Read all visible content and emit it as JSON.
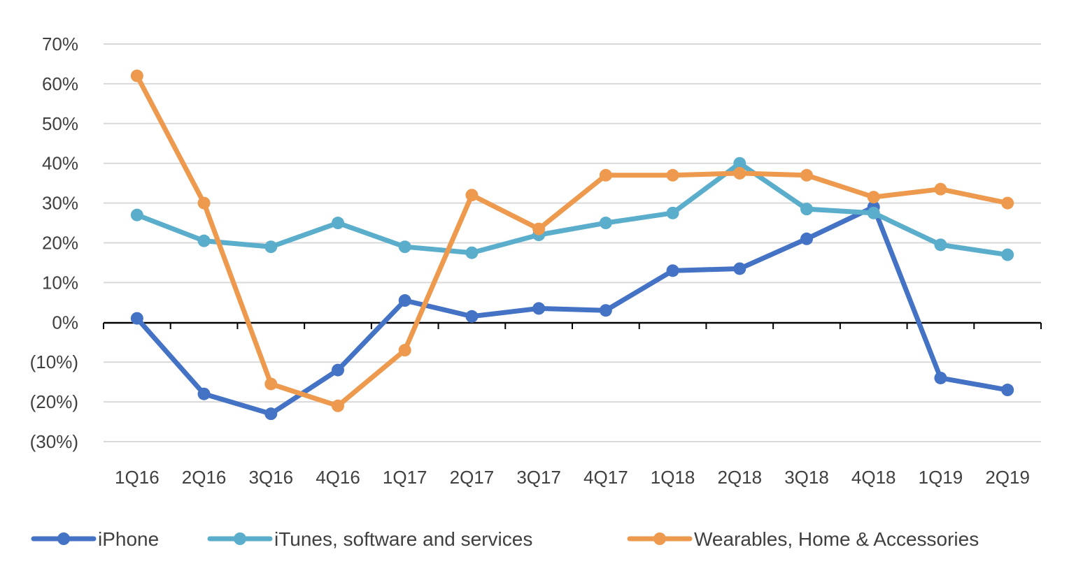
{
  "chart_data": {
    "type": "line",
    "title": "",
    "xlabel": "",
    "ylabel": "",
    "categories": [
      "1Q16",
      "2Q16",
      "3Q16",
      "4Q16",
      "1Q17",
      "2Q17",
      "3Q17",
      "4Q17",
      "1Q18",
      "2Q18",
      "3Q18",
      "4Q18",
      "1Q19",
      "2Q19"
    ],
    "ylim": [
      -30,
      70
    ],
    "yticks": [
      70,
      60,
      50,
      40,
      30,
      20,
      10,
      0,
      -10,
      -20,
      -30
    ],
    "ytick_labels": [
      "70%",
      "60%",
      "50%",
      "40%",
      "30%",
      "20%",
      "10%",
      "0%",
      "(10%)",
      "(20%)",
      "(30%)"
    ],
    "grid": true,
    "legend_position": "bottom",
    "series": [
      {
        "name": "iPhone",
        "color": "#4472C4",
        "values": [
          1,
          -18,
          -23,
          -12,
          5.5,
          1.5,
          3.5,
          3,
          13,
          13.5,
          21,
          29,
          -14,
          -17
        ]
      },
      {
        "name": "iTunes, software and services",
        "color": "#5BAECB",
        "values": [
          27,
          20.5,
          19,
          25,
          19,
          17.5,
          22,
          25,
          27.5,
          40,
          28.5,
          27.5,
          19.5,
          17
        ]
      },
      {
        "name": "Wearables, Home & Accessories",
        "color": "#ED9A4F",
        "values": [
          62,
          30,
          -15.5,
          -21,
          -7,
          32,
          23.5,
          37,
          37,
          37.5,
          37,
          31.5,
          33.5,
          30
        ]
      }
    ]
  }
}
